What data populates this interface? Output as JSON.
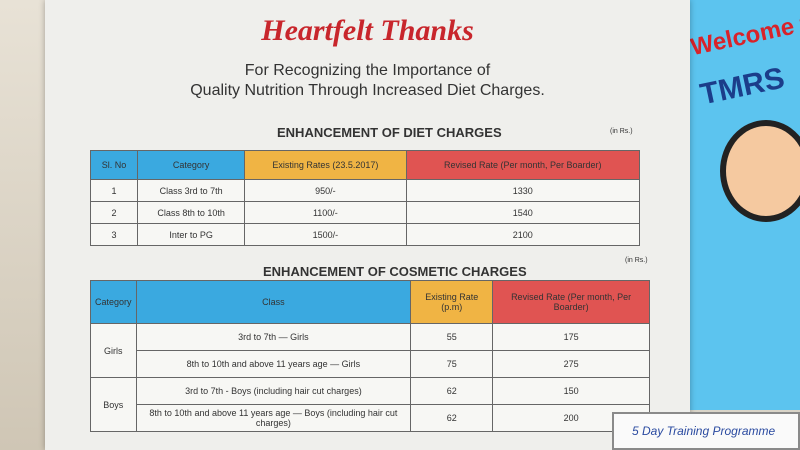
{
  "banner": {
    "title": "Heartfelt Thanks",
    "subtitle": [
      "For Recognizing the Importance of",
      "Quality Nutrition Through Increased Diet Charges."
    ],
    "diet": {
      "title": "ENHANCEMENT OF DIET CHARGES",
      "unit": "(in Rs.)",
      "headers": [
        "Sl. No",
        "Category",
        "Existing Rates (23.5.2017)",
        "Revised Rate (Per month, Per Boarder)"
      ],
      "rows": [
        [
          "1",
          "Class 3rd to 7th",
          "950/-",
          "1330"
        ],
        [
          "2",
          "Class 8th to 10th",
          "1100/-",
          "1540"
        ],
        [
          "3",
          "Inter to PG",
          "1500/-",
          "2100"
        ]
      ]
    },
    "cosmetic": {
      "title": "ENHANCEMENT OF COSMETIC CHARGES",
      "unit": "(in Rs.)",
      "headers": [
        "Category",
        "Class",
        "Existing Rate (p.m)",
        "Revised Rate (Per month, Per Boarder)"
      ],
      "groups": [
        {
          "name": "Girls",
          "rows": [
            [
              "3rd to 7th — Girls",
              "55",
              "175"
            ],
            [
              "8th to 10th and above 11 years age — Girls",
              "75",
              "275"
            ]
          ]
        },
        {
          "name": "Boys",
          "rows": [
            [
              "3rd to 7th - Boys (including hair cut charges)",
              "62",
              "150"
            ],
            [
              "8th to 10th and above 11 years age — Boys (including hair cut charges)",
              "62",
              "200"
            ]
          ]
        }
      ]
    }
  },
  "side_poster": {
    "welcome": "Welcome t",
    "name": "TMRS"
  },
  "note": "5 Day Training Programme"
}
